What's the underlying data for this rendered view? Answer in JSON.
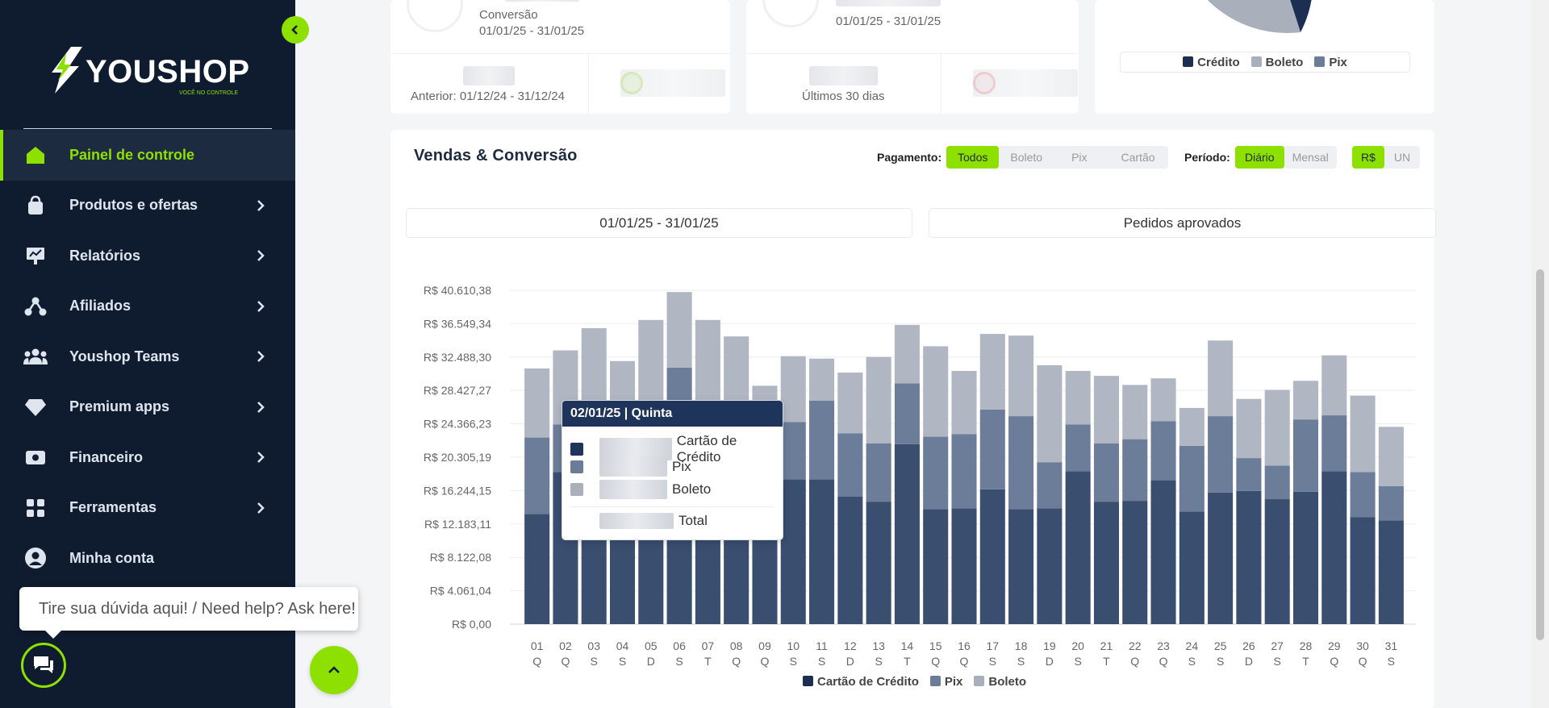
{
  "brand": {
    "name": "YOUSHOP",
    "tagline": "VOCÊ NO CONTROLE",
    "accent": "#8ee000",
    "sidebar_bg": "#0f1c2f"
  },
  "sidebar": {
    "items": [
      {
        "label": "Painel de controle",
        "icon": "home-icon",
        "active": true,
        "chevron": false
      },
      {
        "label": "Produtos e ofertas",
        "icon": "bag-icon",
        "active": false,
        "chevron": true
      },
      {
        "label": "Relatórios",
        "icon": "report-icon",
        "active": false,
        "chevron": true
      },
      {
        "label": "Afiliados",
        "icon": "affiliates-icon",
        "active": false,
        "chevron": true
      },
      {
        "label": "Youshop Teams",
        "icon": "team-icon",
        "active": false,
        "chevron": true
      },
      {
        "label": "Premium apps",
        "icon": "diamond-icon",
        "active": false,
        "chevron": true
      },
      {
        "label": "Financeiro",
        "icon": "wallet-icon",
        "active": false,
        "chevron": true
      },
      {
        "label": "Ferramentas",
        "icon": "tools-icon",
        "active": false,
        "chevron": true
      },
      {
        "label": "Minha conta",
        "icon": "user-icon",
        "active": false,
        "chevron": false
      }
    ]
  },
  "help": {
    "bubble_text": "Tire sua dúvida aqui! / Need help? Ask here!"
  },
  "cards": {
    "conversion": {
      "label": "Conversão",
      "period": "01/01/25 - 31/01/25",
      "previous": "Anterior: 01/12/24 - 31/12/24"
    },
    "cart": {
      "period": "01/01/25 - 31/01/25",
      "previous": "Últimos 30 dias"
    },
    "payment_pie": {
      "legend": [
        {
          "name": "Crédito",
          "color": "#1c2f52"
        },
        {
          "name": "Boleto",
          "color": "#a9b0bc"
        },
        {
          "name": "Pix",
          "color": "#6b7c99"
        }
      ]
    }
  },
  "sales": {
    "title": "Vendas & Conversão",
    "payment_label": "Pagamento:",
    "payment_options": [
      "Todos",
      "Boleto",
      "Pix",
      "Cartão"
    ],
    "payment_selected": "Todos",
    "period_label": "Período:",
    "period_options": [
      "Diário",
      "Mensal"
    ],
    "period_selected": "Diário",
    "unit_options": [
      "R$",
      "UN"
    ],
    "unit_selected": "R$",
    "date_range": "01/01/25 - 31/01/25",
    "metric": "Pedidos aprovados"
  },
  "tooltip": {
    "title": "02/01/25 | Quinta",
    "rows": [
      "Cartão de Crédito",
      "Pix",
      "Boleto"
    ],
    "total_label": "Total"
  },
  "chart_data": {
    "type": "bar",
    "stacked": true,
    "y_ticks": [
      "R$ 0,00",
      "R$ 4.061,04",
      "R$ 8.122,08",
      "R$ 12.183,11",
      "R$ 16.244,15",
      "R$ 20.305,19",
      "R$ 24.366,23",
      "R$ 28.427,27",
      "R$ 32.488,30",
      "R$ 36.549,34",
      "R$ 40.610,38"
    ],
    "ylim": [
      0,
      40610.38
    ],
    "categories": [
      "01",
      "02",
      "03",
      "04",
      "05",
      "06",
      "07",
      "08",
      "09",
      "10",
      "11",
      "12",
      "13",
      "14",
      "15",
      "16",
      "17",
      "18",
      "19",
      "20",
      "21",
      "22",
      "23",
      "24",
      "25",
      "26",
      "27",
      "28",
      "29",
      "30",
      "31"
    ],
    "weekdays": [
      "Q",
      "Q",
      "S",
      "S",
      "D",
      "S",
      "T",
      "Q",
      "Q",
      "S",
      "S",
      "D",
      "S",
      "T",
      "Q",
      "Q",
      "S",
      "S",
      "D",
      "S",
      "T",
      "Q",
      "Q",
      "S",
      "S",
      "D",
      "S",
      "T",
      "Q",
      "Q",
      "S"
    ],
    "series": [
      {
        "name": "Cartão de Crédito",
        "color": "#3a4e70",
        "values": [
          13400,
          18500,
          13000,
          13000,
          12000,
          13000,
          13000,
          13000,
          13000,
          17600,
          17600,
          15500,
          14900,
          21900,
          14000,
          14100,
          16400,
          14000,
          14100,
          18600,
          14900,
          15000,
          17500,
          13700,
          16000,
          16200,
          15200,
          16100,
          18600,
          13000,
          12600
        ]
      },
      {
        "name": "Pix",
        "color": "#6c7d99",
        "values": [
          9300,
          5800,
          7000,
          7000,
          7000,
          18200,
          6000,
          6000,
          6000,
          7000,
          9600,
          7700,
          7100,
          7400,
          8800,
          9000,
          9700,
          11300,
          5600,
          5700,
          7100,
          7500,
          7200,
          8000,
          9300,
          4000,
          4100,
          8800,
          6800,
          5500,
          4200
        ]
      },
      {
        "name": "Boleto",
        "color": "#b0b7c3",
        "values": [
          8400,
          9000,
          16000,
          12000,
          18000,
          9200,
          18000,
          16000,
          10000,
          8000,
          5100,
          7400,
          10500,
          7100,
          11000,
          7700,
          9200,
          9800,
          11800,
          6500,
          8200,
          6600,
          5200,
          4600,
          9200,
          7200,
          9200,
          4700,
          7300,
          9300,
          7200
        ]
      }
    ]
  },
  "chart_legend": [
    {
      "name": "Cartão de Crédito",
      "color": "#1c2f52"
    },
    {
      "name": "Pix",
      "color": "#6b7c99"
    },
    {
      "name": "Boleto",
      "color": "#a9b0bc"
    }
  ]
}
